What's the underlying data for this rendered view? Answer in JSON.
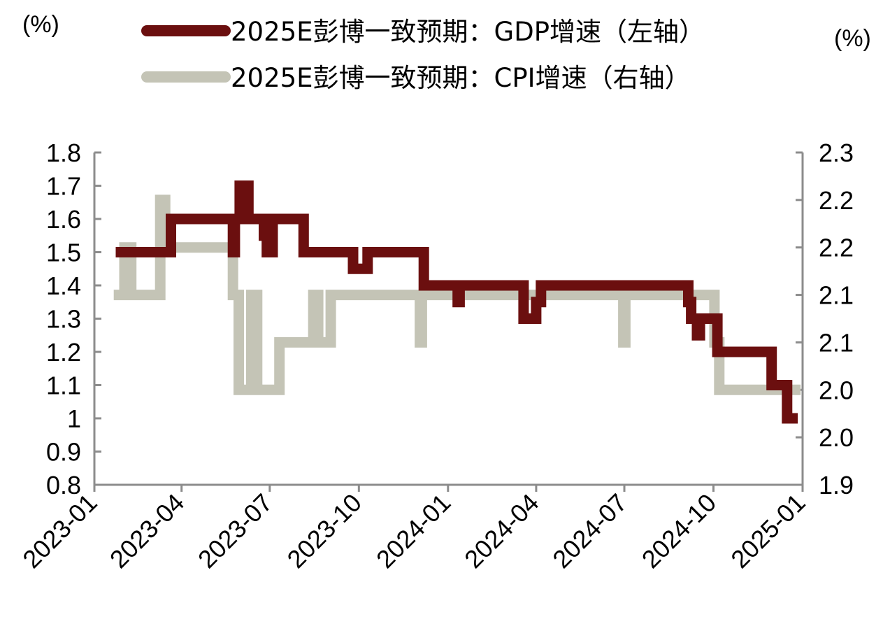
{
  "chart_data": {
    "type": "line",
    "left_unit": "(%)",
    "right_unit": "(%)",
    "left_axis": {
      "ylim": [
        0.8,
        1.8
      ],
      "ticks": [
        {
          "value": 1.8,
          "label": "1.8"
        },
        {
          "value": 1.7,
          "label": "1.7"
        },
        {
          "value": 1.6,
          "label": "1.6"
        },
        {
          "value": 1.5,
          "label": "1.5"
        },
        {
          "value": 1.4,
          "label": "1.4"
        },
        {
          "value": 1.3,
          "label": "1.3"
        },
        {
          "value": 1.2,
          "label": "1.2"
        },
        {
          "value": 1.1,
          "label": "1.1"
        },
        {
          "value": 1.0,
          "label": "1"
        },
        {
          "value": 0.9,
          "label": "0.9"
        },
        {
          "value": 0.8,
          "label": "0.8"
        }
      ]
    },
    "right_axis": {
      "ylim": [
        1.9,
        2.25
      ],
      "ticks": [
        {
          "value": 2.25,
          "label": "2.3"
        },
        {
          "value": 2.2,
          "label": "2.2"
        },
        {
          "value": 2.15,
          "label": "2.2"
        },
        {
          "value": 2.1,
          "label": "2.1"
        },
        {
          "value": 2.05,
          "label": "2.1"
        },
        {
          "value": 2.0,
          "label": "2.0"
        },
        {
          "value": 1.95,
          "label": "2.0"
        },
        {
          "value": 1.9,
          "label": "1.9"
        }
      ]
    },
    "x_axis": {
      "range": [
        "2023-01-01",
        "2025-01-01"
      ],
      "ticks": [
        {
          "date": "2023-01-01",
          "label": "2023-01"
        },
        {
          "date": "2023-04-01",
          "label": "2023-04"
        },
        {
          "date": "2023-07-01",
          "label": "2023-07"
        },
        {
          "date": "2023-10-01",
          "label": "2023-10"
        },
        {
          "date": "2024-01-01",
          "label": "2024-01"
        },
        {
          "date": "2024-04-01",
          "label": "2024-04"
        },
        {
          "date": "2024-07-01",
          "label": "2024-07"
        },
        {
          "date": "2024-10-01",
          "label": "2024-10"
        },
        {
          "date": "2025-01-01",
          "label": "2025-01"
        }
      ]
    },
    "series": [
      {
        "name": "2025E彭博一致预期：GDP增速（左轴）",
        "axis": "left",
        "color": "#6b0f0f",
        "points": [
          [
            "2023-01-23",
            1.5
          ],
          [
            "2023-03-21",
            1.5
          ],
          [
            "2023-03-21",
            1.6
          ],
          [
            "2023-05-24",
            1.6
          ],
          [
            "2023-05-24",
            1.5
          ],
          [
            "2023-05-26",
            1.5
          ],
          [
            "2023-05-26",
            1.6
          ],
          [
            "2023-05-31",
            1.6
          ],
          [
            "2023-05-31",
            1.7
          ],
          [
            "2023-06-09",
            1.7
          ],
          [
            "2023-06-09",
            1.6
          ],
          [
            "2023-06-25",
            1.6
          ],
          [
            "2023-06-25",
            1.55
          ],
          [
            "2023-06-28",
            1.55
          ],
          [
            "2023-06-28",
            1.5
          ],
          [
            "2023-07-04",
            1.5
          ],
          [
            "2023-07-04",
            1.6
          ],
          [
            "2023-08-05",
            1.6
          ],
          [
            "2023-08-05",
            1.5
          ],
          [
            "2023-09-25",
            1.5
          ],
          [
            "2023-09-25",
            1.45
          ],
          [
            "2023-10-10",
            1.45
          ],
          [
            "2023-10-10",
            1.5
          ],
          [
            "2023-12-07",
            1.5
          ],
          [
            "2023-12-07",
            1.4
          ],
          [
            "2024-01-11",
            1.4
          ],
          [
            "2024-01-11",
            1.35
          ],
          [
            "2024-01-13",
            1.35
          ],
          [
            "2024-01-13",
            1.4
          ],
          [
            "2024-03-19",
            1.4
          ],
          [
            "2024-03-19",
            1.3
          ],
          [
            "2024-04-01",
            1.3
          ],
          [
            "2024-04-01",
            1.35
          ],
          [
            "2024-04-06",
            1.35
          ],
          [
            "2024-04-06",
            1.4
          ],
          [
            "2024-09-05",
            1.4
          ],
          [
            "2024-09-05",
            1.35
          ],
          [
            "2024-09-08",
            1.35
          ],
          [
            "2024-09-08",
            1.3
          ],
          [
            "2024-09-14",
            1.3
          ],
          [
            "2024-09-14",
            1.25
          ],
          [
            "2024-09-17",
            1.25
          ],
          [
            "2024-09-17",
            1.3
          ],
          [
            "2024-10-05",
            1.3
          ],
          [
            "2024-10-05",
            1.2
          ],
          [
            "2024-11-30",
            1.2
          ],
          [
            "2024-11-30",
            1.1
          ],
          [
            "2024-12-16",
            1.1
          ],
          [
            "2024-12-16",
            1.0
          ],
          [
            "2024-12-27",
            1.0
          ]
        ]
      },
      {
        "name": "2025E彭博一致预期：CPI增速（右轴）",
        "axis": "right",
        "color": "#c4c4b6",
        "points": [
          [
            "2023-01-21",
            2.1
          ],
          [
            "2023-02-01",
            2.1
          ],
          [
            "2023-02-01",
            2.15
          ],
          [
            "2023-02-08",
            2.15
          ],
          [
            "2023-02-08",
            2.1
          ],
          [
            "2023-03-10",
            2.1
          ],
          [
            "2023-03-10",
            2.2
          ],
          [
            "2023-03-15",
            2.2
          ],
          [
            "2023-03-15",
            2.15
          ],
          [
            "2023-05-24",
            2.15
          ],
          [
            "2023-05-24",
            2.1
          ],
          [
            "2023-05-30",
            2.1
          ],
          [
            "2023-05-30",
            2.0
          ],
          [
            "2023-06-12",
            2.0
          ],
          [
            "2023-06-12",
            2.1
          ],
          [
            "2023-06-18",
            2.1
          ],
          [
            "2023-06-18",
            2.0
          ],
          [
            "2023-07-11",
            2.0
          ],
          [
            "2023-07-11",
            2.05
          ],
          [
            "2023-08-15",
            2.05
          ],
          [
            "2023-08-15",
            2.1
          ],
          [
            "2023-08-20",
            2.1
          ],
          [
            "2023-08-20",
            2.05
          ],
          [
            "2023-09-02",
            2.05
          ],
          [
            "2023-09-02",
            2.1
          ],
          [
            "2023-12-03",
            2.1
          ],
          [
            "2023-12-03",
            2.05
          ],
          [
            "2023-12-05",
            2.05
          ],
          [
            "2023-12-05",
            2.1
          ],
          [
            "2024-06-30",
            2.1
          ],
          [
            "2024-06-30",
            2.05
          ],
          [
            "2024-07-02",
            2.05
          ],
          [
            "2024-07-02",
            2.1
          ],
          [
            "2024-10-02",
            2.1
          ],
          [
            "2024-10-02",
            2.05
          ],
          [
            "2024-10-07",
            2.05
          ],
          [
            "2024-10-07",
            2.0
          ],
          [
            "2024-12-30",
            2.0
          ]
        ]
      }
    ],
    "legend": {
      "placement": "top"
    }
  }
}
